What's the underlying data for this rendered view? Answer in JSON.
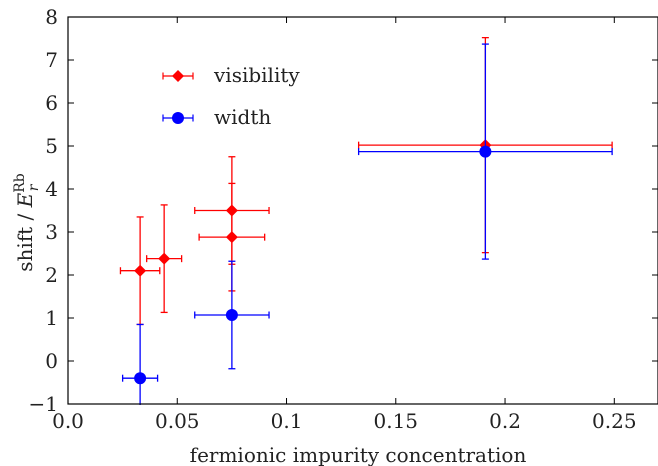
{
  "chart_data": {
    "type": "scatter",
    "xlabel": "fermionic impurity concentration",
    "ylabel": {
      "prefix": "shift / ",
      "symbol": "E",
      "superscript": "Rb",
      "subscript": "r"
    },
    "xlim": [
      0.0,
      0.27
    ],
    "ylim": [
      -1,
      8
    ],
    "xticks": [
      {
        "value": 0.0,
        "label": "0.0"
      },
      {
        "value": 0.05,
        "label": "0.05"
      },
      {
        "value": 0.1,
        "label": "0.1"
      },
      {
        "value": 0.15,
        "label": "0.15"
      },
      {
        "value": 0.2,
        "label": "0.2"
      },
      {
        "value": 0.25,
        "label": "0.25"
      }
    ],
    "yticks": [
      {
        "value": -1,
        "label": "−1"
      },
      {
        "value": 0,
        "label": "0"
      },
      {
        "value": 1,
        "label": "1"
      },
      {
        "value": 2,
        "label": "2"
      },
      {
        "value": 3,
        "label": "3"
      },
      {
        "value": 4,
        "label": "4"
      },
      {
        "value": 5,
        "label": "5"
      },
      {
        "value": 6,
        "label": "6"
      },
      {
        "value": 7,
        "label": "7"
      },
      {
        "value": 8,
        "label": "8"
      }
    ],
    "grid": false,
    "legend_position": "top-left",
    "series": [
      {
        "name": "visibility",
        "color": "#ff0000",
        "marker": "diamond",
        "points": [
          {
            "x": 0.033,
            "y": 2.1,
            "xerr_low": 0.009,
            "xerr_high": 0.009,
            "yerr_low": 1.25,
            "yerr_high": 1.25
          },
          {
            "x": 0.044,
            "y": 2.38,
            "xerr_low": 0.008,
            "xerr_high": 0.008,
            "yerr_low": 1.25,
            "yerr_high": 1.25
          },
          {
            "x": 0.075,
            "y": 3.5,
            "xerr_low": 0.017,
            "xerr_high": 0.017,
            "yerr_low": 1.25,
            "yerr_high": 1.25
          },
          {
            "x": 0.075,
            "y": 2.88,
            "xerr_low": 0.015,
            "xerr_high": 0.015,
            "yerr_low": 1.25,
            "yerr_high": 1.25
          },
          {
            "x": 0.191,
            "y": 5.02,
            "xerr_low": 0.058,
            "xerr_high": 0.058,
            "yerr_low": 2.5,
            "yerr_high": 2.5
          }
        ]
      },
      {
        "name": "width",
        "color": "#0000ff",
        "marker": "circle",
        "points": [
          {
            "x": 0.033,
            "y": -0.4,
            "xerr_low": 0.008,
            "xerr_high": 0.008,
            "yerr_low": 1.25,
            "yerr_high": 1.25
          },
          {
            "x": 0.075,
            "y": 1.07,
            "xerr_low": 0.017,
            "xerr_high": 0.017,
            "yerr_low": 1.25,
            "yerr_high": 1.25
          },
          {
            "x": 0.191,
            "y": 4.87,
            "xerr_low": 0.058,
            "xerr_high": 0.058,
            "yerr_low": 2.5,
            "yerr_high": 2.5
          }
        ]
      }
    ]
  }
}
